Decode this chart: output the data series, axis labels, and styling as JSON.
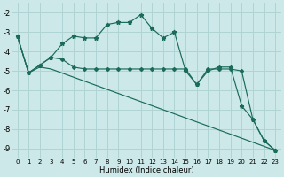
{
  "xlabel": "Humidex (Indice chaleur)",
  "bg_color": "#cce8e8",
  "grid_color": "#b0d4d4",
  "line_color": "#1a6b5a",
  "xlim": [
    -0.5,
    23.5
  ],
  "ylim": [
    -9.5,
    -1.5
  ],
  "yticks": [
    -9,
    -8,
    -7,
    -6,
    -5,
    -4,
    -3,
    -2
  ],
  "xticks": [
    0,
    1,
    2,
    3,
    4,
    5,
    6,
    7,
    8,
    9,
    10,
    11,
    12,
    13,
    14,
    15,
    16,
    17,
    18,
    19,
    20,
    21,
    22,
    23
  ],
  "series1_x": [
    0,
    1,
    2,
    3,
    4,
    5,
    6,
    7,
    8,
    9,
    10,
    11,
    12,
    13,
    14,
    15,
    16,
    17,
    18,
    19,
    20,
    21,
    22,
    23
  ],
  "series1_y": [
    -3.2,
    -5.1,
    -4.7,
    -4.3,
    -3.6,
    -3.2,
    -3.3,
    -3.3,
    -2.6,
    -2.5,
    -2.5,
    -2.1,
    -2.8,
    -3.3,
    -3.0,
    -5.0,
    -5.7,
    -5.0,
    -4.8,
    -4.8,
    -6.8,
    -7.5,
    -8.6,
    -9.1
  ],
  "series2_x": [
    0,
    1,
    2,
    3,
    4,
    5,
    6,
    7,
    8,
    9,
    10,
    11,
    12,
    13,
    14,
    15,
    16,
    17,
    18,
    19,
    20,
    21,
    22,
    23
  ],
  "series2_y": [
    -3.2,
    -5.1,
    -4.7,
    -4.3,
    -4.4,
    -4.8,
    -4.9,
    -4.9,
    -4.9,
    -4.9,
    -4.9,
    -4.9,
    -4.9,
    -4.9,
    -4.9,
    -4.9,
    -5.7,
    -4.9,
    -4.9,
    -4.9,
    -5.0,
    -7.5,
    -8.6,
    -9.1
  ],
  "series3_x": [
    0,
    1,
    2,
    3,
    23
  ],
  "series3_y": [
    -3.2,
    -5.1,
    -4.8,
    -4.9,
    -9.1
  ]
}
